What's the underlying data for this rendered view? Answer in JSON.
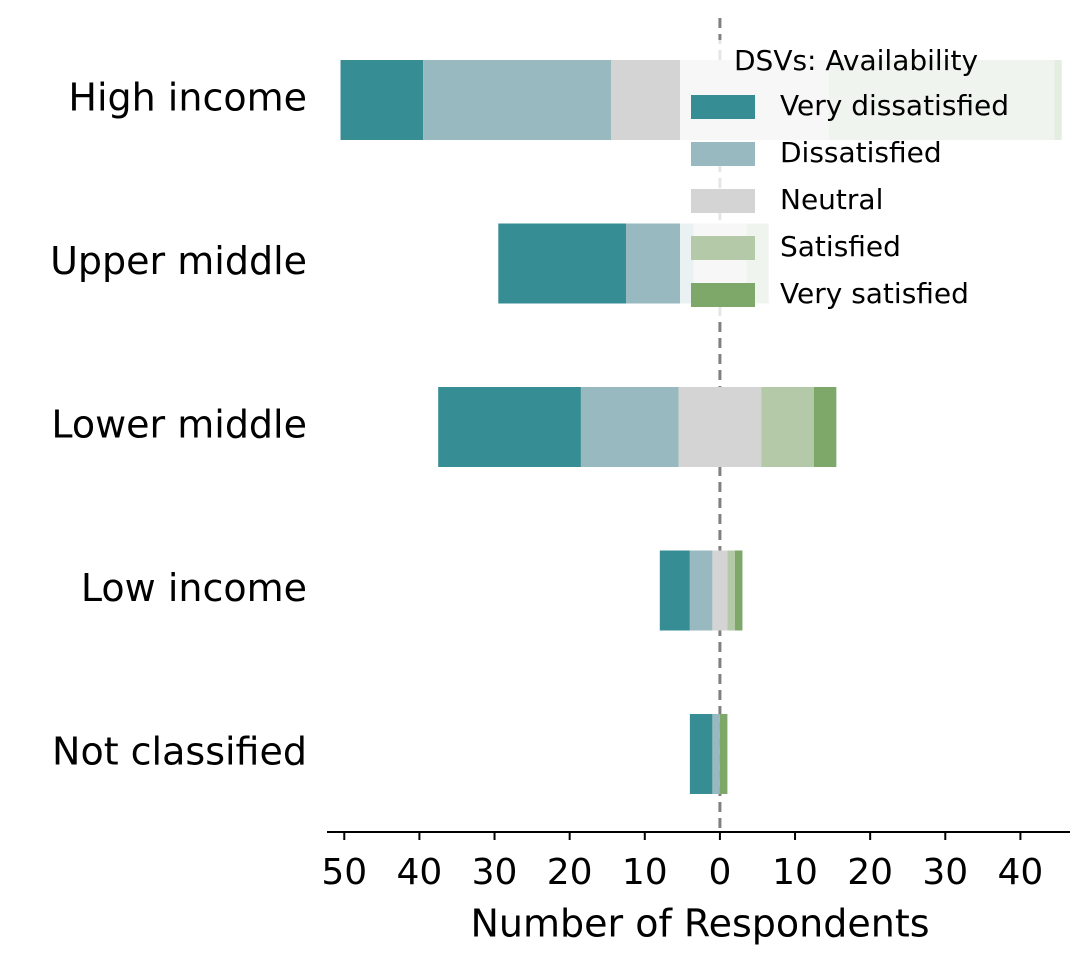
{
  "chart_data": {
    "type": "diverging_bar",
    "xlabel": "Number of Respondents",
    "legend_title": "DSVs: Availability",
    "legend_position": "upper right",
    "categories": [
      "High income",
      "Upper middle",
      "Lower middle",
      "Low income",
      "Not classified"
    ],
    "series": [
      {
        "name": "Very dissatisfied",
        "color": "#368d94",
        "values": [
          11,
          17,
          19,
          4,
          3
        ]
      },
      {
        "name": "Dissatisfied",
        "color": "#97b9bf",
        "values": [
          25,
          9,
          13,
          3,
          1
        ]
      },
      {
        "name": "Neutral",
        "color": "#d4d4d4",
        "values": [
          29,
          7,
          11,
          2,
          0
        ]
      },
      {
        "name": "Satisfied",
        "color": "#b4c9a8",
        "values": [
          30,
          3,
          7,
          1,
          0
        ]
      },
      {
        "name": "Very satisfied",
        "color": "#7ea76a",
        "values": [
          1,
          0,
          3,
          1,
          1
        ]
      }
    ],
    "xlim": [
      -52.3,
      46.6
    ],
    "xticks": [
      {
        "value": -50,
        "label": "50"
      },
      {
        "value": -40,
        "label": "40"
      },
      {
        "value": -30,
        "label": "30"
      },
      {
        "value": -20,
        "label": "20"
      },
      {
        "value": -10,
        "label": "10"
      },
      0,
      10,
      20,
      30,
      40
    ]
  }
}
